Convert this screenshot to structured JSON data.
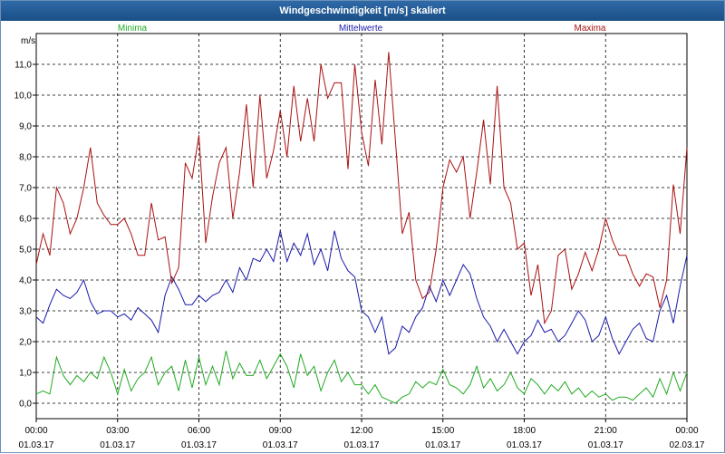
{
  "window": {
    "title": "Windgeschwindigkeit [m/s] skaliert"
  },
  "chart_data": {
    "type": "line",
    "title": "Windgeschwindigkeit [m/s] skaliert",
    "ylabel": "m/s",
    "xlabel": "",
    "ylim": [
      -0.5,
      12.0
    ],
    "xlim": [
      0,
      24
    ],
    "grid": true,
    "y_ticks": [
      "0,0",
      "1,0",
      "2,0",
      "3,0",
      "4,0",
      "5,0",
      "6,0",
      "7,0",
      "8,0",
      "9,0",
      "10,0",
      "11,0"
    ],
    "y_tick_values": [
      0,
      1,
      2,
      3,
      4,
      5,
      6,
      7,
      8,
      9,
      10,
      11
    ],
    "x_ticks": [
      {
        "time": "00:00",
        "date": "01.03.17"
      },
      {
        "time": "03:00",
        "date": "01.03.17"
      },
      {
        "time": "06:00",
        "date": "01.03.17"
      },
      {
        "time": "09:00",
        "date": "01.03.17"
      },
      {
        "time": "12:00",
        "date": "01.03.17"
      },
      {
        "time": "15:00",
        "date": "01.03.17"
      },
      {
        "time": "18:00",
        "date": "01.03.17"
      },
      {
        "time": "21:00",
        "date": "01.03.17"
      },
      {
        "time": "00:00",
        "date": "02.03.17"
      }
    ],
    "x_tick_values": [
      0,
      3,
      6,
      9,
      12,
      15,
      18,
      21,
      24
    ],
    "legend_placement": "top",
    "series": [
      {
        "name": "Minima",
        "color": "#22aa22",
        "values": [
          [
            0.0,
            0.3
          ],
          [
            0.25,
            0.4
          ],
          [
            0.5,
            0.3
          ],
          [
            0.75,
            1.5
          ],
          [
            1.0,
            0.9
          ],
          [
            1.25,
            0.6
          ],
          [
            1.5,
            0.9
          ],
          [
            1.75,
            0.7
          ],
          [
            2.0,
            1.0
          ],
          [
            2.25,
            0.8
          ],
          [
            2.5,
            1.5
          ],
          [
            2.75,
            1.0
          ],
          [
            3.0,
            0.3
          ],
          [
            3.25,
            1.1
          ],
          [
            3.5,
            0.4
          ],
          [
            3.75,
            0.8
          ],
          [
            4.0,
            1.0
          ],
          [
            4.25,
            1.5
          ],
          [
            4.5,
            0.6
          ],
          [
            4.75,
            1.0
          ],
          [
            5.0,
            1.2
          ],
          [
            5.25,
            0.4
          ],
          [
            5.5,
            1.4
          ],
          [
            5.75,
            0.5
          ],
          [
            6.0,
            1.5
          ],
          [
            6.25,
            0.6
          ],
          [
            6.5,
            1.2
          ],
          [
            6.75,
            0.6
          ],
          [
            7.0,
            1.7
          ],
          [
            7.25,
            0.8
          ],
          [
            7.5,
            1.3
          ],
          [
            7.75,
            0.9
          ],
          [
            8.0,
            0.9
          ],
          [
            8.25,
            1.4
          ],
          [
            8.5,
            0.8
          ],
          [
            8.75,
            1.2
          ],
          [
            9.0,
            1.6
          ],
          [
            9.25,
            1.2
          ],
          [
            9.5,
            0.5
          ],
          [
            9.75,
            1.6
          ],
          [
            10.0,
            0.9
          ],
          [
            10.25,
            1.2
          ],
          [
            10.5,
            0.4
          ],
          [
            10.75,
            1.0
          ],
          [
            11.0,
            1.4
          ],
          [
            11.25,
            0.7
          ],
          [
            11.5,
            1.0
          ],
          [
            11.75,
            0.6
          ],
          [
            12.0,
            0.6
          ],
          [
            12.25,
            0.3
          ],
          [
            12.5,
            0.6
          ],
          [
            12.75,
            0.2
          ],
          [
            13.0,
            0.1
          ],
          [
            13.25,
            0.0
          ],
          [
            13.5,
            0.2
          ],
          [
            13.75,
            0.3
          ],
          [
            14.0,
            0.7
          ],
          [
            14.25,
            0.5
          ],
          [
            14.5,
            0.7
          ],
          [
            14.75,
            0.6
          ],
          [
            15.0,
            1.1
          ],
          [
            15.25,
            0.6
          ],
          [
            15.5,
            0.5
          ],
          [
            15.75,
            0.3
          ],
          [
            16.0,
            0.6
          ],
          [
            16.25,
            1.2
          ],
          [
            16.5,
            0.5
          ],
          [
            16.75,
            0.8
          ],
          [
            17.0,
            0.4
          ],
          [
            17.25,
            0.6
          ],
          [
            17.5,
            1.0
          ],
          [
            17.75,
            0.5
          ],
          [
            18.0,
            0.3
          ],
          [
            18.25,
            0.8
          ],
          [
            18.5,
            0.6
          ],
          [
            18.75,
            0.3
          ],
          [
            19.0,
            0.6
          ],
          [
            19.25,
            0.4
          ],
          [
            19.5,
            0.7
          ],
          [
            19.75,
            0.3
          ],
          [
            20.0,
            0.5
          ],
          [
            20.25,
            0.2
          ],
          [
            20.5,
            0.4
          ],
          [
            20.75,
            0.2
          ],
          [
            21.0,
            0.3
          ],
          [
            21.25,
            0.1
          ],
          [
            21.5,
            0.2
          ],
          [
            21.75,
            0.2
          ],
          [
            22.0,
            0.1
          ],
          [
            22.25,
            0.3
          ],
          [
            22.5,
            0.5
          ],
          [
            22.75,
            0.2
          ],
          [
            23.0,
            0.8
          ],
          [
            23.25,
            0.3
          ],
          [
            23.5,
            1.0
          ],
          [
            23.75,
            0.4
          ],
          [
            24.0,
            1.0
          ]
        ]
      },
      {
        "name": "Mittelwerte",
        "color": "#1a1aaa",
        "values": [
          [
            0.0,
            2.8
          ],
          [
            0.25,
            2.6
          ],
          [
            0.5,
            3.2
          ],
          [
            0.75,
            3.7
          ],
          [
            1.0,
            3.5
          ],
          [
            1.25,
            3.4
          ],
          [
            1.5,
            3.6
          ],
          [
            1.75,
            4.0
          ],
          [
            2.0,
            3.3
          ],
          [
            2.25,
            2.9
          ],
          [
            2.5,
            3.0
          ],
          [
            2.75,
            3.0
          ],
          [
            3.0,
            2.8
          ],
          [
            3.25,
            2.9
          ],
          [
            3.5,
            2.7
          ],
          [
            3.75,
            3.1
          ],
          [
            4.0,
            2.9
          ],
          [
            4.25,
            2.7
          ],
          [
            4.5,
            2.3
          ],
          [
            4.75,
            3.5
          ],
          [
            5.0,
            4.1
          ],
          [
            5.25,
            3.7
          ],
          [
            5.5,
            3.2
          ],
          [
            5.75,
            3.2
          ],
          [
            6.0,
            3.5
          ],
          [
            6.25,
            3.3
          ],
          [
            6.5,
            3.5
          ],
          [
            6.75,
            3.6
          ],
          [
            7.0,
            4.0
          ],
          [
            7.25,
            3.6
          ],
          [
            7.5,
            4.4
          ],
          [
            7.75,
            4.0
          ],
          [
            8.0,
            4.7
          ],
          [
            8.25,
            4.6
          ],
          [
            8.5,
            5.0
          ],
          [
            8.75,
            4.6
          ],
          [
            9.0,
            5.6
          ],
          [
            9.25,
            4.6
          ],
          [
            9.5,
            5.2
          ],
          [
            9.75,
            4.8
          ],
          [
            10.0,
            5.5
          ],
          [
            10.25,
            4.5
          ],
          [
            10.5,
            5.0
          ],
          [
            10.75,
            4.3
          ],
          [
            11.0,
            5.6
          ],
          [
            11.25,
            4.7
          ],
          [
            11.5,
            4.3
          ],
          [
            11.75,
            4.1
          ],
          [
            12.0,
            3.0
          ],
          [
            12.25,
            2.8
          ],
          [
            12.5,
            2.3
          ],
          [
            12.75,
            2.8
          ],
          [
            13.0,
            1.6
          ],
          [
            13.25,
            1.8
          ],
          [
            13.5,
            2.5
          ],
          [
            13.75,
            2.3
          ],
          [
            14.0,
            2.8
          ],
          [
            14.25,
            3.1
          ],
          [
            14.5,
            3.8
          ],
          [
            14.75,
            3.3
          ],
          [
            15.0,
            4.0
          ],
          [
            15.25,
            3.5
          ],
          [
            15.5,
            4.0
          ],
          [
            15.75,
            4.5
          ],
          [
            16.0,
            4.2
          ],
          [
            16.25,
            3.4
          ],
          [
            16.5,
            2.8
          ],
          [
            16.75,
            2.5
          ],
          [
            17.0,
            2.0
          ],
          [
            17.25,
            2.4
          ],
          [
            17.5,
            2.0
          ],
          [
            17.75,
            1.6
          ],
          [
            18.0,
            2.0
          ],
          [
            18.25,
            2.2
          ],
          [
            18.5,
            2.7
          ],
          [
            18.75,
            2.3
          ],
          [
            19.0,
            2.4
          ],
          [
            19.25,
            2.0
          ],
          [
            19.5,
            2.2
          ],
          [
            19.75,
            2.6
          ],
          [
            20.0,
            3.0
          ],
          [
            20.25,
            2.7
          ],
          [
            20.5,
            2.0
          ],
          [
            20.75,
            2.2
          ],
          [
            21.0,
            2.8
          ],
          [
            21.25,
            2.1
          ],
          [
            21.5,
            1.6
          ],
          [
            21.75,
            2.0
          ],
          [
            22.0,
            2.4
          ],
          [
            22.25,
            2.6
          ],
          [
            22.5,
            2.1
          ],
          [
            22.75,
            2.0
          ],
          [
            23.0,
            3.0
          ],
          [
            23.25,
            3.5
          ],
          [
            23.5,
            2.6
          ],
          [
            23.75,
            3.8
          ],
          [
            24.0,
            4.8
          ]
        ]
      },
      {
        "name": "Maxima",
        "color": "#aa1111",
        "values": [
          [
            0.0,
            4.5
          ],
          [
            0.25,
            5.5
          ],
          [
            0.5,
            4.8
          ],
          [
            0.75,
            7.0
          ],
          [
            1.0,
            6.5
          ],
          [
            1.25,
            5.5
          ],
          [
            1.5,
            6.0
          ],
          [
            1.75,
            7.0
          ],
          [
            2.0,
            8.3
          ],
          [
            2.25,
            6.5
          ],
          [
            2.5,
            6.1
          ],
          [
            2.75,
            5.8
          ],
          [
            3.0,
            5.8
          ],
          [
            3.25,
            6.0
          ],
          [
            3.5,
            5.5
          ],
          [
            3.75,
            4.8
          ],
          [
            4.0,
            4.8
          ],
          [
            4.25,
            6.5
          ],
          [
            4.5,
            5.3
          ],
          [
            4.75,
            5.4
          ],
          [
            5.0,
            3.9
          ],
          [
            5.25,
            4.4
          ],
          [
            5.5,
            7.8
          ],
          [
            5.75,
            7.3
          ],
          [
            6.0,
            8.7
          ],
          [
            6.25,
            5.2
          ],
          [
            6.5,
            6.7
          ],
          [
            6.75,
            7.8
          ],
          [
            7.0,
            8.3
          ],
          [
            7.25,
            6.0
          ],
          [
            7.5,
            7.5
          ],
          [
            7.75,
            9.7
          ],
          [
            8.0,
            7.0
          ],
          [
            8.25,
            10.0
          ],
          [
            8.5,
            7.3
          ],
          [
            8.75,
            8.2
          ],
          [
            9.0,
            9.5
          ],
          [
            9.25,
            8.0
          ],
          [
            9.5,
            10.3
          ],
          [
            9.75,
            8.5
          ],
          [
            10.0,
            9.9
          ],
          [
            10.25,
            8.5
          ],
          [
            10.5,
            11.0
          ],
          [
            10.75,
            9.9
          ],
          [
            11.0,
            10.4
          ],
          [
            11.25,
            10.4
          ],
          [
            11.5,
            7.6
          ],
          [
            11.75,
            11.0
          ],
          [
            12.0,
            8.8
          ],
          [
            12.25,
            7.7
          ],
          [
            12.5,
            10.5
          ],
          [
            12.75,
            8.4
          ],
          [
            13.0,
            11.4
          ],
          [
            13.25,
            8.5
          ],
          [
            13.5,
            5.5
          ],
          [
            13.75,
            6.2
          ],
          [
            14.0,
            4.0
          ],
          [
            14.25,
            3.4
          ],
          [
            14.5,
            3.6
          ],
          [
            14.75,
            5.0
          ],
          [
            15.0,
            7.0
          ],
          [
            15.25,
            7.9
          ],
          [
            15.5,
            7.5
          ],
          [
            15.75,
            8.0
          ],
          [
            16.0,
            6.0
          ],
          [
            16.25,
            7.5
          ],
          [
            16.5,
            9.2
          ],
          [
            16.75,
            7.1
          ],
          [
            17.0,
            10.3
          ],
          [
            17.25,
            7.0
          ],
          [
            17.5,
            6.5
          ],
          [
            17.75,
            5.0
          ],
          [
            18.0,
            5.2
          ],
          [
            18.25,
            3.5
          ],
          [
            18.5,
            4.5
          ],
          [
            18.75,
            2.6
          ],
          [
            19.0,
            3.0
          ],
          [
            19.25,
            4.8
          ],
          [
            19.5,
            5.0
          ],
          [
            19.75,
            3.7
          ],
          [
            20.0,
            4.2
          ],
          [
            20.25,
            4.9
          ],
          [
            20.5,
            4.3
          ],
          [
            20.75,
            5.0
          ],
          [
            21.0,
            6.0
          ],
          [
            21.25,
            5.3
          ],
          [
            21.5,
            4.8
          ],
          [
            21.75,
            4.8
          ],
          [
            22.0,
            4.2
          ],
          [
            22.25,
            3.8
          ],
          [
            22.5,
            4.2
          ],
          [
            22.75,
            4.1
          ],
          [
            23.0,
            3.1
          ],
          [
            23.25,
            4.0
          ],
          [
            23.5,
            7.1
          ],
          [
            23.75,
            5.5
          ],
          [
            24.0,
            8.3
          ]
        ]
      }
    ]
  }
}
